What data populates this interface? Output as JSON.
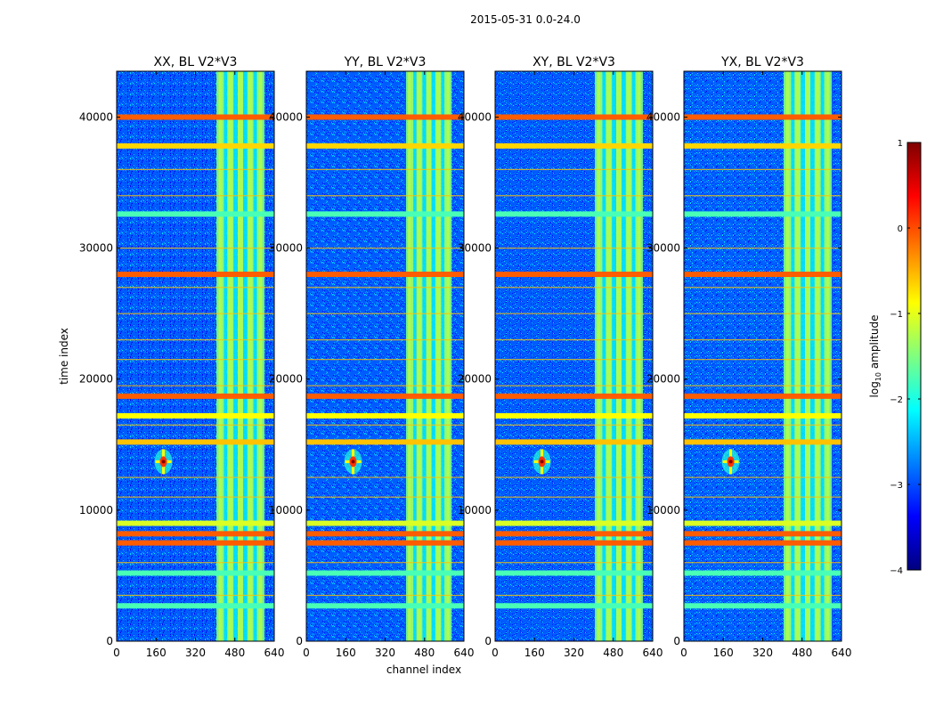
{
  "figure": {
    "suptitle": "2015-05-31 0.0-24.0",
    "xlabel": "channel index",
    "ylabel": "time index"
  },
  "colorbar": {
    "label_main": "log",
    "label_sub": "10",
    "label_rest": " amplitude",
    "ticks": [
      "1",
      "0",
      "−1",
      "−2",
      "−3",
      "−4"
    ],
    "range": [
      -4,
      1
    ],
    "colormap": "jet",
    "colors": [
      "#00007f",
      "#0000ff",
      "#007fff",
      "#00ffff",
      "#7fff7f",
      "#ffff00",
      "#ff7f00",
      "#ff0000",
      "#7f0000"
    ]
  },
  "chart_data": [
    {
      "type": "heatmap",
      "title": "XX, BL V2*V3",
      "xlabel": "",
      "ylabel": "time index",
      "xlim": [
        0,
        640
      ],
      "ylim": [
        0,
        43500
      ],
      "xticks": [
        0,
        160,
        320,
        480,
        640
      ],
      "yticks": [
        0,
        10000,
        20000,
        30000,
        40000
      ],
      "bright_channel_range": [
        405,
        600
      ],
      "source_peak": {
        "channel": 190,
        "time": 13700,
        "log_amplitude": 1
      }
    },
    {
      "type": "heatmap",
      "title": "YY, BL V2*V3",
      "xlabel": "channel index",
      "ylabel": "",
      "xlim": [
        0,
        640
      ],
      "ylim": [
        0,
        43500
      ],
      "xticks": [
        0,
        160,
        320,
        480,
        640
      ],
      "yticks": [
        0,
        10000,
        20000,
        30000,
        40000
      ],
      "bright_channel_range": [
        405,
        590
      ],
      "source_peak": {
        "channel": 190,
        "time": 13700,
        "log_amplitude": 1
      }
    },
    {
      "type": "heatmap",
      "title": "XY, BL V2*V3",
      "xlabel": "",
      "ylabel": "",
      "xlim": [
        0,
        640
      ],
      "ylim": [
        0,
        43500
      ],
      "xticks": [
        0,
        160,
        320,
        480,
        640
      ],
      "yticks": [
        0,
        10000,
        20000,
        30000,
        40000
      ],
      "bright_channel_range": [
        405,
        600
      ],
      "source_peak": {
        "channel": 190,
        "time": 13700,
        "log_amplitude": 1
      }
    },
    {
      "type": "heatmap",
      "title": "YX, BL V2*V3",
      "xlabel": "",
      "ylabel": "",
      "xlim": [
        0,
        640
      ],
      "ylim": [
        0,
        43500
      ],
      "xticks": [
        0,
        160,
        320,
        480,
        640
      ],
      "yticks": [
        0,
        10000,
        20000,
        30000,
        40000
      ],
      "bright_channel_range": [
        405,
        600
      ],
      "source_peak": {
        "channel": 190,
        "time": 13700,
        "log_amplitude": 1
      }
    }
  ],
  "rfi_bands": [
    {
      "time": 40000,
      "log_amplitude": 0
    },
    {
      "time": 37800,
      "log_amplitude": -0.6
    },
    {
      "time": 32600,
      "log_amplitude": -1.8
    },
    {
      "time": 28000,
      "log_amplitude": 0
    },
    {
      "time": 18700,
      "log_amplitude": 0
    },
    {
      "time": 17200,
      "log_amplitude": -0.8
    },
    {
      "time": 15200,
      "log_amplitude": -0.5
    },
    {
      "time": 9000,
      "log_amplitude": -1
    },
    {
      "time": 8200,
      "log_amplitude": 0
    },
    {
      "time": 7500,
      "log_amplitude": 0
    },
    {
      "time": 5200,
      "log_amplitude": -1.8
    },
    {
      "time": 2700,
      "log_amplitude": -1.8
    }
  ]
}
